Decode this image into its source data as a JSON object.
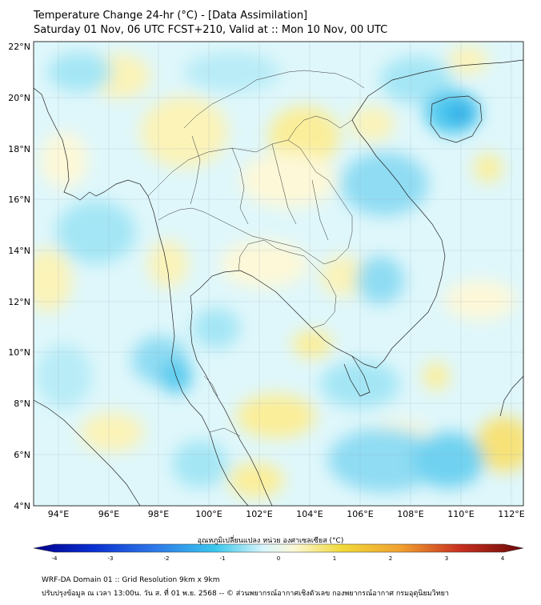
{
  "title": {
    "line1": "Temperature Change 24-hr (°C) - [Data Assimilation]",
    "line2": "Saturday 01 Nov, 06 UTC FCST+210, Valid at :: Mon 10 Nov, 00 UTC"
  },
  "map": {
    "lat_range": [
      4,
      22
    ],
    "lon_range": [
      93,
      112.5
    ],
    "lat_ticks": [
      "4°N",
      "6°N",
      "8°N",
      "10°N",
      "12°N",
      "14°N",
      "16°N",
      "18°N",
      "20°N",
      "22°N"
    ],
    "lon_ticks": [
      "94°E",
      "96°E",
      "98°E",
      "100°E",
      "102°E",
      "104°E",
      "106°E",
      "108°E",
      "110°E",
      "112°E"
    ],
    "grid": true,
    "background_color": "#dff7fb"
  },
  "colorbar": {
    "label": "อุณหภูมิเปลี่ยนแปลง หน่วย องศาเซลเซียส (°C)",
    "ticks": [
      "-4",
      "-3",
      "-2",
      "-1",
      "0",
      "1",
      "2",
      "3",
      "4"
    ],
    "min": -4,
    "max": 4,
    "colors": [
      "#00008b",
      "#0a2fd0",
      "#2f7ae8",
      "#39c6ec",
      "#e6f9fb",
      "#fbf6c8",
      "#f1d93a",
      "#e8702a",
      "#b0181c",
      "#6b0808"
    ]
  },
  "footer": {
    "line1": "WRF-DA Domain 01 :: Grid Resolution 9km x 9km",
    "line2": "ปรับปรุงข้อมูล ณ เวลา 13:00น. วัน ส. ที่ 01 พ.ย. 2568 -- © ส่วนพยากรณ์อากาศเชิงตัวเลข กองพยากรณ์อากาศ กรมอุตุนิยมวิทยา"
  }
}
